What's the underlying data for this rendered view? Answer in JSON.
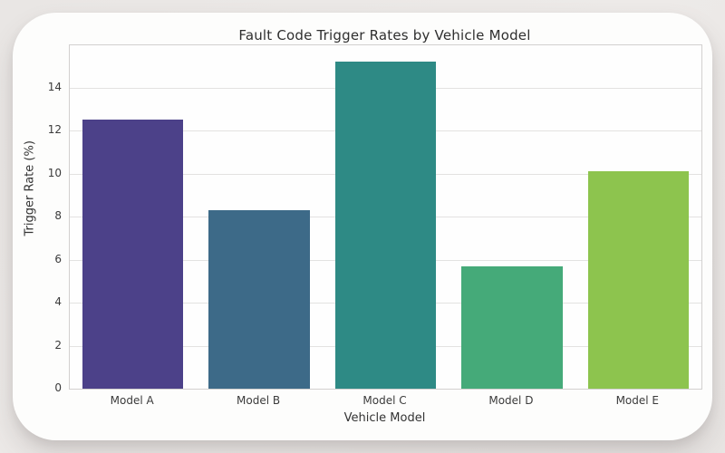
{
  "page": {
    "background_color": "#eceae8",
    "card_background": "#fdfdfc"
  },
  "chart_data": {
    "type": "bar",
    "title": "Fault Code Trigger Rates by Vehicle Model",
    "xlabel": "Vehicle Model",
    "ylabel": "Trigger Rate (%)",
    "categories": [
      "Model A",
      "Model B",
      "Model C",
      "Model D",
      "Model E"
    ],
    "values": [
      12.5,
      8.3,
      15.2,
      5.7,
      10.1
    ],
    "bar_colors": [
      "#4c4189",
      "#3d6a88",
      "#2e8a85",
      "#45aa79",
      "#8dc44e"
    ],
    "ylim": [
      0,
      15.96
    ],
    "yticks": [
      0,
      2,
      4,
      6,
      8,
      10,
      12,
      14
    ],
    "grid": "horizontal-only",
    "legend": "none",
    "bar_width_fraction": 0.8,
    "plot_border_color": "#d2d0cf",
    "gridline_color": "#e3e2e1",
    "text_color": "#3b3b3b"
  }
}
